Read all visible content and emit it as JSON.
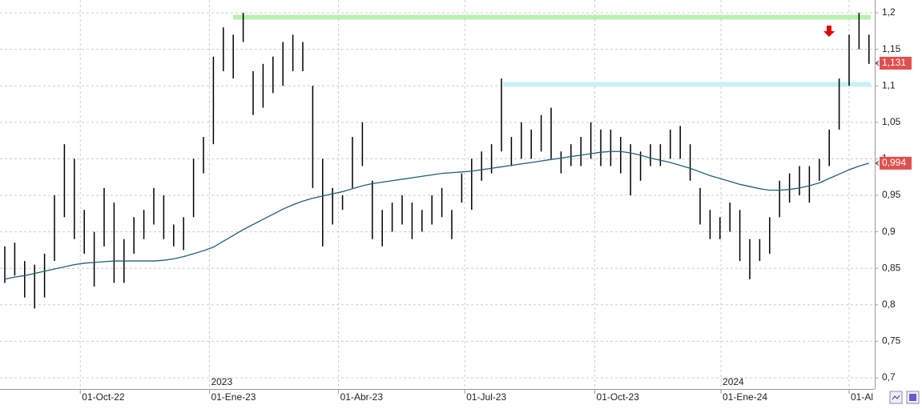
{
  "chart_data": {
    "type": "range-bars",
    "bar_color": "#000000",
    "high": [
      0.88,
      0.885,
      0.86,
      0.855,
      0.87,
      0.95,
      1.02,
      1.0,
      0.93,
      0.9,
      0.96,
      0.94,
      0.89,
      0.92,
      0.93,
      0.96,
      0.95,
      0.91,
      0.92,
      1.0,
      1.03,
      1.14,
      1.18,
      1.17,
      1.2,
      1.12,
      1.13,
      1.14,
      1.16,
      1.17,
      1.16,
      1.1,
      1.0,
      0.96,
      0.95,
      1.03,
      1.05,
      0.97,
      0.93,
      0.94,
      0.95,
      0.94,
      0.93,
      0.95,
      0.96,
      0.93,
      0.98,
      1.0,
      1.01,
      1.02,
      1.11,
      1.03,
      1.05,
      1.04,
      1.06,
      1.07,
      1.01,
      1.02,
      1.03,
      1.05,
      1.04,
      1.04,
      1.03,
      1.02,
      1.01,
      1.02,
      1.02,
      1.04,
      1.045,
      1.02,
      0.96,
      0.93,
      0.92,
      0.94,
      0.93,
      0.89,
      0.89,
      0.92,
      0.97,
      0.98,
      0.99,
      0.99,
      1.0,
      1.04,
      1.11,
      1.17,
      1.2,
      1.17
    ],
    "low": [
      0.83,
      0.84,
      0.81,
      0.795,
      0.81,
      0.86,
      0.92,
      0.89,
      0.87,
      0.825,
      0.88,
      0.83,
      0.83,
      0.87,
      0.89,
      0.91,
      0.89,
      0.88,
      0.875,
      0.92,
      0.98,
      1.02,
      1.12,
      1.11,
      1.16,
      1.06,
      1.07,
      1.09,
      1.1,
      1.12,
      1.12,
      0.96,
      0.88,
      0.91,
      0.93,
      0.96,
      0.99,
      0.89,
      0.88,
      0.9,
      0.91,
      0.89,
      0.9,
      0.91,
      0.92,
      0.89,
      0.94,
      0.93,
      0.97,
      0.98,
      1.01,
      0.99,
      1.0,
      1.0,
      1.01,
      1.0,
      0.98,
      0.99,
      0.99,
      1.0,
      0.99,
      0.99,
      0.98,
      0.95,
      0.97,
      0.99,
      0.99,
      1.0,
      1.0,
      0.97,
      0.91,
      0.89,
      0.89,
      0.9,
      0.86,
      0.835,
      0.86,
      0.87,
      0.92,
      0.94,
      0.95,
      0.94,
      0.97,
      0.99,
      1.04,
      1.1,
      1.15,
      1.13
    ],
    "moving_average": {
      "color": "#1f5f7a",
      "values": [
        0.835,
        0.838,
        0.84,
        0.843,
        0.846,
        0.849,
        0.852,
        0.855,
        0.857,
        0.858,
        0.859,
        0.86,
        0.86,
        0.86,
        0.86,
        0.86,
        0.861,
        0.863,
        0.866,
        0.87,
        0.874,
        0.879,
        0.887,
        0.895,
        0.903,
        0.91,
        0.917,
        0.924,
        0.931,
        0.937,
        0.942,
        0.946,
        0.949,
        0.952,
        0.955,
        0.959,
        0.963,
        0.966,
        0.968,
        0.97,
        0.972,
        0.974,
        0.976,
        0.978,
        0.98,
        0.981,
        0.982,
        0.983,
        0.985,
        0.987,
        0.989,
        0.991,
        0.993,
        0.995,
        0.997,
        0.999,
        1.001,
        1.003,
        1.005,
        1.007,
        1.009,
        1.01,
        1.01,
        1.008,
        1.005,
        1.001,
        0.998,
        0.995,
        0.991,
        0.987,
        0.982,
        0.977,
        0.973,
        0.969,
        0.965,
        0.962,
        0.959,
        0.957,
        0.957,
        0.958,
        0.96,
        0.963,
        0.967,
        0.973,
        0.979,
        0.985,
        0.99,
        0.994
      ]
    },
    "ylim": [
      0.7,
      1.2
    ],
    "yticks": [
      {
        "value": 0.7,
        "label": "0,7"
      },
      {
        "value": 0.75,
        "label": "0,75"
      },
      {
        "value": 0.8,
        "label": "0,8"
      },
      {
        "value": 0.85,
        "label": "0,85"
      },
      {
        "value": 0.9,
        "label": "0,9"
      },
      {
        "value": 0.95,
        "label": "0,95"
      },
      {
        "value": 1.0,
        "label": "1"
      },
      {
        "value": 1.05,
        "label": "1,05"
      },
      {
        "value": 1.1,
        "label": "1,1"
      },
      {
        "value": 1.15,
        "label": "1,15"
      },
      {
        "value": 1.2,
        "label": "1,2"
      }
    ],
    "xticks": [
      {
        "value": 7.6,
        "label": "01-Oct-22"
      },
      {
        "value": 20.6,
        "label": "01-Ene-23"
      },
      {
        "value": 33.6,
        "label": "01-Abr-23"
      },
      {
        "value": 46.3,
        "label": "01-Jul-23"
      },
      {
        "value": 59.4,
        "label": "01-Oct-23"
      },
      {
        "value": 72.1,
        "label": "01-Ene-24"
      },
      {
        "value": 85.0,
        "label": "01-Al"
      }
    ],
    "year_labels": [
      {
        "value": 20.6,
        "label": "2023"
      },
      {
        "value": 72.1,
        "label": "2024"
      }
    ],
    "price_tags": [
      {
        "value": 1.131,
        "label": "1,131"
      },
      {
        "value": 0.994,
        "label": "0,994"
      }
    ],
    "levels": [
      {
        "value": 1.194,
        "color": "#b8f0b0"
      },
      {
        "value": 1.102,
        "color": "#c4f2f5"
      }
    ],
    "grid": true
  }
}
